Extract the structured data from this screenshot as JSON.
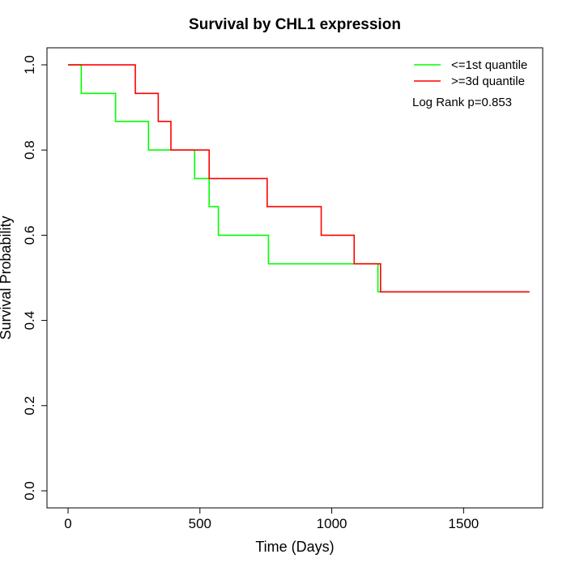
{
  "chart_data": {
    "type": "line",
    "step": true,
    "title": "Survival by CHL1 expression",
    "xlabel": "Time (Days)",
    "ylabel": "Survival Probability",
    "xlim": [
      -80,
      1800
    ],
    "ylim": [
      -0.04,
      1.04
    ],
    "xticks": [
      0,
      500,
      1000,
      1500
    ],
    "yticks": [
      0.0,
      0.2,
      0.4,
      0.6,
      0.8,
      1.0
    ],
    "xtick_labels": [
      "0",
      "500",
      "1000",
      "1500"
    ],
    "ytick_labels": [
      "0.0",
      "0.2",
      "0.4",
      "0.6",
      "0.8",
      "1.0"
    ],
    "grid": false,
    "legend_position": "top-right",
    "annotation": "Log Rank p=0.853",
    "series": [
      {
        "name": "<=1st quantile",
        "color": "#00ff00",
        "x": [
          0,
          50,
          180,
          305,
          480,
          535,
          570,
          760,
          1175,
          1750
        ],
        "y": [
          1.0,
          0.933,
          0.867,
          0.8,
          0.733,
          0.667,
          0.6,
          0.533,
          0.467,
          0.467
        ]
      },
      {
        "name": ">=3d quantile",
        "color": "#ff0000",
        "x": [
          0,
          255,
          342,
          390,
          535,
          755,
          960,
          1085,
          1185,
          1750
        ],
        "y": [
          1.0,
          0.933,
          0.867,
          0.8,
          0.733,
          0.667,
          0.6,
          0.533,
          0.467,
          0.467
        ]
      }
    ]
  }
}
